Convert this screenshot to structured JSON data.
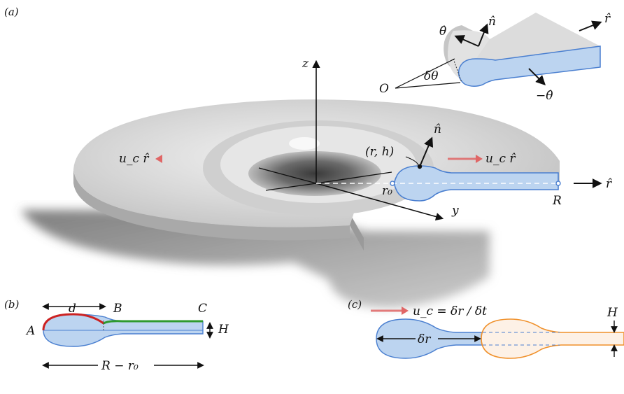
{
  "panels": {
    "a": "(a)",
    "b": "(b)",
    "c": "(c)"
  },
  "panel_a": {
    "axis_z": "z",
    "axis_y": "y",
    "velocity_left": "u_c r̂",
    "velocity_right": "u_c r̂",
    "normal": "n̂",
    "rim_point": "(r, h)",
    "r0": "r₀",
    "R": "R",
    "r_hat": "r̂"
  },
  "inset": {
    "theta_hat": "θ̂",
    "normal": "n̂",
    "r_hat": "r̂",
    "origin": "O",
    "delta_theta": "δθ",
    "neg_theta_hat": "−θ̂"
  },
  "panel_b": {
    "d": "d",
    "A": "A",
    "B": "B",
    "C": "C",
    "H": "H",
    "width": "R − r₀"
  },
  "panel_c": {
    "velocity": "u_c = δr / δt",
    "delta_r": "δr",
    "H": "H"
  },
  "colors": {
    "sheet_fill": "#bcd4f0",
    "sheet_edge": "#4a7fd0",
    "retracted_edge": "#f0902a",
    "retracted_fill": "#fdf1e6",
    "rim_arc": "#cc2222",
    "sheet_top": "#2e9a2e",
    "velocity_arrow": "#e07070"
  }
}
